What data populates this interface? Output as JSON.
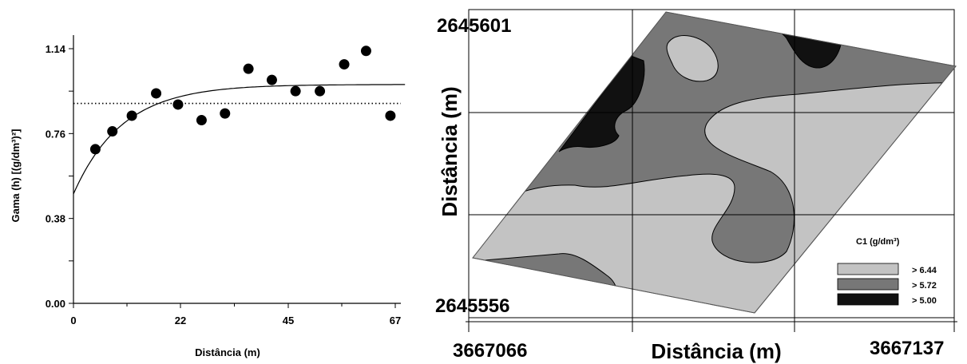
{
  "chart_data": [
    {
      "type": "scatter",
      "xlabel": "Distância (m)",
      "ylabel": "Gama (h) [(g/dm³)²]",
      "xticks": [
        "0",
        "22",
        "45",
        "67"
      ],
      "yticks": [
        "0.00",
        "0.38",
        "0.76",
        "1.14"
      ],
      "xlim": [
        0,
        70
      ],
      "ylim": [
        0,
        1.14
      ],
      "points": [
        {
          "x": 4.5,
          "y": 0.69
        },
        {
          "x": 8,
          "y": 0.77
        },
        {
          "x": 12,
          "y": 0.84
        },
        {
          "x": 17,
          "y": 0.94
        },
        {
          "x": 21.5,
          "y": 0.89
        },
        {
          "x": 26.5,
          "y": 0.82
        },
        {
          "x": 31.5,
          "y": 0.85
        },
        {
          "x": 36.5,
          "y": 1.05
        },
        {
          "x": 41.5,
          "y": 1.0
        },
        {
          "x": 46.5,
          "y": 0.95
        },
        {
          "x": 51.5,
          "y": 0.95
        },
        {
          "x": 56.5,
          "y": 1.07
        },
        {
          "x": 61,
          "y": 1.13
        },
        {
          "x": 66,
          "y": 0.84
        }
      ],
      "model": {
        "nugget": 0.49,
        "sill": 0.98,
        "range": 30
      },
      "reference_line_y": 0.895
    },
    {
      "type": "heatmap",
      "xlabel": "Distância (m)",
      "ylabel": "Distância (m)",
      "x_range_labels": [
        "3667066",
        "3667137"
      ],
      "y_range_labels": [
        "2645601",
        "2645556"
      ],
      "legend": {
        "title": "C1 (g/dm³)",
        "entries": [
          {
            "label": "> 6.44",
            "color": "#c3c3c3"
          },
          {
            "label": "> 5.72",
            "color": "#777777"
          },
          {
            "label": "> 5.00",
            "color": "#111111"
          }
        ]
      }
    }
  ]
}
